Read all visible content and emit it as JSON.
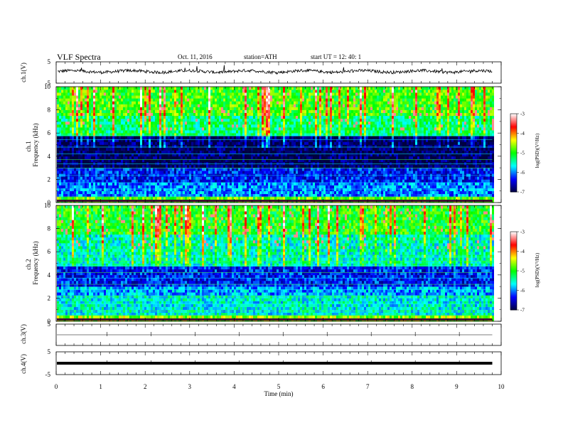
{
  "header": {
    "title": "VLF  Spectra",
    "date": "Oct. 11, 2016",
    "station": "station=ATH",
    "start": "start  UT =   12: 40: 1"
  },
  "chart_data": [
    {
      "type": "line",
      "name": "ch1-waveform",
      "ylabel": "ch.1(V)",
      "ylim": [
        -5,
        5
      ],
      "yticks": [
        "5",
        "-5"
      ],
      "x_range_min": [
        0,
        9.8
      ],
      "values_note_baseline_v": 0.5,
      "amplitude_v": [
        -1.5,
        1.5
      ]
    },
    {
      "type": "heatmap",
      "name": "ch1-spectrogram",
      "ylabel_channel": "ch.1",
      "ylabel": "Frequency  (kHz)",
      "ylim": [
        0,
        10
      ],
      "yticks": [
        "0",
        "2",
        "4",
        "6",
        "8",
        "10"
      ],
      "colorbar": {
        "label": "log(PSD)(V²/Hz)",
        "range": [
          -7,
          -3
        ],
        "ticks": [
          "-3",
          "-4",
          "-5",
          "-6",
          "-7"
        ]
      },
      "bands": [
        {
          "from_khz": 0,
          "to_khz": 0.3,
          "level": -4.8
        },
        {
          "from_khz": 0.3,
          "to_khz": 1.6,
          "level": -6.0
        },
        {
          "from_khz": 1.6,
          "to_khz": 3.0,
          "level": -6.3
        },
        {
          "from_khz": 3.0,
          "to_khz": 5.6,
          "level": -6.9
        },
        {
          "from_khz": 5.6,
          "to_khz": 7.5,
          "level": -5.3
        },
        {
          "from_khz": 7.5,
          "to_khz": 10,
          "level": -4.9
        }
      ]
    },
    {
      "type": "heatmap",
      "name": "ch2-spectrogram",
      "ylabel_channel": "ch.2",
      "ylabel": "Frequency  (kHz)",
      "ylim": [
        0,
        10
      ],
      "yticks": [
        "0",
        "2",
        "4",
        "6",
        "8",
        "10"
      ],
      "colorbar": {
        "label": "log(PSD)(V²/Hz)",
        "range": [
          -7,
          -3
        ],
        "ticks": [
          "-3",
          "-4",
          "-5",
          "-6",
          "-7"
        ]
      },
      "bands": [
        {
          "from_khz": 0,
          "to_khz": 0.3,
          "level": -4.6
        },
        {
          "from_khz": 0.3,
          "to_khz": 2.2,
          "level": -5.6
        },
        {
          "from_khz": 2.2,
          "to_khz": 3.0,
          "level": -5.9
        },
        {
          "from_khz": 3.0,
          "to_khz": 4.6,
          "level": -6.3
        },
        {
          "from_khz": 4.6,
          "to_khz": 7.5,
          "level": -5.5
        },
        {
          "from_khz": 7.5,
          "to_khz": 10,
          "level": -5.0
        }
      ]
    },
    {
      "type": "line",
      "name": "ch3-waveform",
      "ylabel": "ch.3(V)",
      "ylim": [
        -5,
        5
      ],
      "yticks": [
        "5"
      ],
      "level_v": 0
    },
    {
      "type": "line",
      "name": "ch4-waveform",
      "ylabel": "ch.4(V)",
      "ylim": [
        -5,
        5
      ],
      "yticks": [
        "5",
        "-5"
      ],
      "level_v": 0
    }
  ],
  "xaxis": {
    "label": "Time  (min)",
    "range": [
      0,
      10
    ],
    "ticks": [
      "0",
      "1",
      "2",
      "3",
      "4",
      "5",
      "6",
      "7",
      "8",
      "9",
      "10"
    ],
    "data_end_min": 9.8
  },
  "colors": {
    "cmap": [
      "#000040",
      "#0000ff",
      "#00ffff",
      "#00ff00",
      "#ffff00",
      "#ff0000",
      "#ffffff"
    ]
  }
}
